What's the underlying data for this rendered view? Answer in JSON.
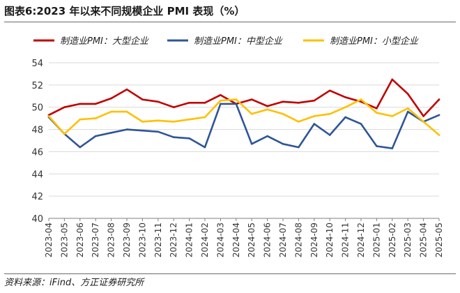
{
  "title": "图表6:2023 年以来不同规模企业 PMI 表现（%）",
  "source": "资料来源：iFind、方正证券研究所",
  "chart_data": {
    "type": "line",
    "categories": [
      "2023-04",
      "2023-05",
      "2023-06",
      "2023-07",
      "2023-08",
      "2023-09",
      "2023-10",
      "2023-11",
      "2023-12",
      "2024-01",
      "2024-02",
      "2024-03",
      "2024-04",
      "2024-05",
      "2024-06",
      "2024-07",
      "2024-08",
      "2024-09",
      "2024-10",
      "2024-11",
      "2024-12",
      "2025-01",
      "2025-02",
      "2025-03",
      "2025-04",
      "2025-05"
    ],
    "series": [
      {
        "name": "制造业PMI：大型企业",
        "color": "#C00000",
        "values": [
          49.3,
          50.0,
          50.3,
          50.3,
          50.8,
          51.6,
          50.7,
          50.5,
          50.0,
          50.4,
          50.4,
          51.1,
          50.3,
          50.7,
          50.1,
          50.5,
          50.4,
          50.6,
          51.5,
          50.9,
          50.5,
          49.9,
          52.5,
          51.2,
          49.2,
          50.7
        ]
      },
      {
        "name": "制造业PMI：中型企业",
        "color": "#2E5597",
        "values": [
          49.1,
          47.6,
          46.4,
          47.4,
          47.7,
          48.0,
          47.9,
          47.8,
          47.3,
          47.2,
          46.4,
          50.3,
          50.3,
          46.7,
          47.4,
          46.7,
          46.4,
          48.5,
          47.5,
          49.1,
          48.5,
          46.5,
          46.3,
          49.6,
          48.7,
          49.3
        ]
      },
      {
        "name": "制造业PMI：小型企业",
        "color": "#FFC000",
        "values": [
          49.2,
          47.6,
          48.9,
          49.0,
          49.6,
          49.6,
          48.7,
          48.8,
          48.7,
          48.9,
          49.1,
          50.6,
          50.7,
          49.4,
          49.8,
          49.4,
          48.7,
          49.2,
          49.4,
          50.0,
          50.7,
          49.5,
          49.2,
          49.9,
          48.7,
          47.5
        ]
      }
    ],
    "ylim": [
      40,
      54
    ],
    "yticks": [
      40,
      42,
      44,
      46,
      48,
      50,
      52,
      54
    ],
    "grid": true,
    "legend": "top"
  }
}
